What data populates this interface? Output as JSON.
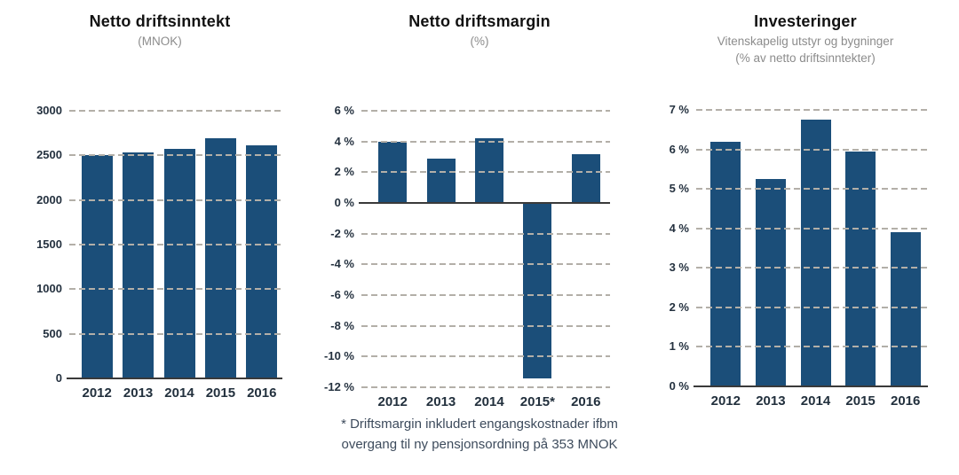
{
  "page": {
    "background": "#ffffff"
  },
  "colors": {
    "bar": "#1B4E79",
    "gridline": "#B3AFA8",
    "axis_line": "#3A3A3A",
    "title": "#121212",
    "subtitle": "#8C8C8C",
    "tick_label": "#24313F",
    "footnote": "#3D4B5C"
  },
  "chart_data": [
    {
      "type": "bar",
      "title": "Netto driftsinntekt",
      "subtitle_lines": [
        "(MNOK)"
      ],
      "categories": [
        "2012",
        "2013",
        "2014",
        "2015",
        "2016"
      ],
      "values": [
        2500,
        2535,
        2575,
        2690,
        2610
      ],
      "ylim": [
        0,
        3000
      ],
      "ytick_step": 500,
      "axis_value": 0,
      "grid": "dashed-horizontal",
      "legend": "none",
      "bar_color": "#1B4E79",
      "ticks": [
        {
          "value": 3000,
          "label": "3000"
        },
        {
          "value": 2500,
          "label": "2500"
        },
        {
          "value": 2000,
          "label": "2000"
        },
        {
          "value": 1500,
          "label": "1500"
        },
        {
          "value": 1000,
          "label": "1000"
        },
        {
          "value": 500,
          "label": "500"
        },
        {
          "value": 0,
          "label": "0"
        }
      ]
    },
    {
      "type": "bar",
      "title": "Netto driftsmargin",
      "subtitle_lines": [
        "(%)"
      ],
      "categories": [
        "2012",
        "2013",
        "2014",
        "2015*",
        "2016"
      ],
      "values": [
        4.0,
        2.9,
        4.2,
        -11.4,
        3.2
      ],
      "ylim": [
        -12,
        6
      ],
      "ytick_step": 2,
      "axis_value": 0,
      "grid": "dashed-horizontal",
      "legend": "none",
      "bar_color": "#1B4E79",
      "ticks": [
        {
          "value": 6,
          "label": "6 %"
        },
        {
          "value": 4,
          "label": "4 %"
        },
        {
          "value": 2,
          "label": "2 %"
        },
        {
          "value": 0,
          "label": "0 %"
        },
        {
          "value": -2,
          "label": "-2 %"
        },
        {
          "value": -4,
          "label": "-4 %"
        },
        {
          "value": -6,
          "label": "-6 %"
        },
        {
          "value": -8,
          "label": "-8 %"
        },
        {
          "value": -10,
          "label": "-10 %"
        },
        {
          "value": -12,
          "label": "-12 %"
        }
      ]
    },
    {
      "type": "bar",
      "title": "Investeringer",
      "subtitle_lines": [
        "Vitenskapelig utstyr og bygninger",
        "(% av netto driftsinntekter)"
      ],
      "categories": [
        "2012",
        "2013",
        "2014",
        "2015",
        "2016"
      ],
      "values": [
        6.2,
        5.25,
        6.75,
        5.95,
        3.9
      ],
      "ylim": [
        0,
        7
      ],
      "ytick_step": 1,
      "axis_value": 0,
      "grid": "dashed-horizontal",
      "legend": "none",
      "bar_color": "#1B4E79",
      "ticks": [
        {
          "value": 7,
          "label": "7 %"
        },
        {
          "value": 6,
          "label": "6 %"
        },
        {
          "value": 5,
          "label": "5 %"
        },
        {
          "value": 4,
          "label": "4 %"
        },
        {
          "value": 3,
          "label": "3 %"
        },
        {
          "value": 2,
          "label": "2 %"
        },
        {
          "value": 1,
          "label": "1 %"
        },
        {
          "value": 0,
          "label": "0 %"
        }
      ]
    }
  ],
  "footnote": {
    "line1": "* Driftsmargin inkludert engangskostnader ifbm",
    "line2": "overgang til ny pensjonsordning på 353 MNOK"
  }
}
